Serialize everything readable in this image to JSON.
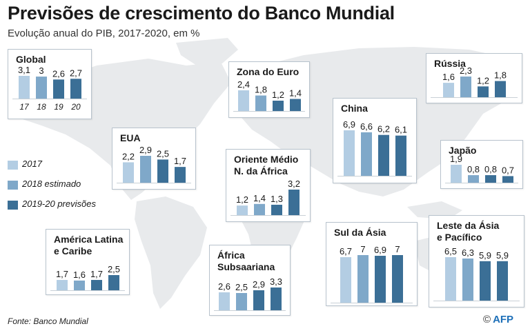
{
  "header": {
    "title": "Previsões de crescimento do Banco Mundial",
    "subtitle": "Evolução anual do PIB, 2017-2020, em %"
  },
  "colors": {
    "c2017": "#b3cde3",
    "c2018": "#7fa8c9",
    "c2019_20": "#3b6f96",
    "map": "#e8eaec",
    "text": "#1a1a1a"
  },
  "legend": [
    {
      "label": "2017",
      "color": "#b3cde3"
    },
    {
      "label": "2018 estimado",
      "color": "#7fa8c9"
    },
    {
      "label": "2019-20 previsões",
      "color": "#3b6f96"
    }
  ],
  "chart_data": [
    {
      "type": "bar",
      "title": "Global",
      "categories": [
        "17",
        "18",
        "19",
        "20"
      ],
      "values": [
        3.1,
        3.0,
        2.6,
        2.7
      ],
      "labels": [
        "3,1",
        "3",
        "2,6",
        "2,7"
      ]
    },
    {
      "type": "bar",
      "title": "Zona do Euro",
      "categories": [
        "17",
        "18",
        "19",
        "20"
      ],
      "values": [
        2.4,
        1.8,
        1.2,
        1.4
      ],
      "labels": [
        "2,4",
        "1,8",
        "1,2",
        "1,4"
      ]
    },
    {
      "type": "bar",
      "title": "Rússia",
      "categories": [
        "17",
        "18",
        "19",
        "20"
      ],
      "values": [
        1.6,
        2.3,
        1.2,
        1.8
      ],
      "labels": [
        "1,6",
        "2,3",
        "1,2",
        "1,8"
      ]
    },
    {
      "type": "bar",
      "title": "China",
      "categories": [
        "17",
        "18",
        "19",
        "20"
      ],
      "values": [
        6.9,
        6.6,
        6.2,
        6.1
      ],
      "labels": [
        "6,9",
        "6,6",
        "6,2",
        "6,1"
      ]
    },
    {
      "type": "bar",
      "title": "EUA",
      "categories": [
        "17",
        "18",
        "19",
        "20"
      ],
      "values": [
        2.2,
        2.9,
        2.5,
        1.7
      ],
      "labels": [
        "2,2",
        "2,9",
        "2,5",
        "1,7"
      ]
    },
    {
      "type": "bar",
      "title": "Oriente Médio\nN. da África",
      "categories": [
        "17",
        "18",
        "19",
        "20"
      ],
      "values": [
        1.2,
        1.4,
        1.3,
        3.2
      ],
      "labels": [
        "1,2",
        "1,4",
        "1,3",
        "3,2"
      ]
    },
    {
      "type": "bar",
      "title": "Japão",
      "categories": [
        "17",
        "18",
        "19",
        "20"
      ],
      "values": [
        1.9,
        0.8,
        0.8,
        0.7
      ],
      "labels": [
        "1,9",
        "0,8",
        "0,8",
        "0,7"
      ]
    },
    {
      "type": "bar",
      "title": "América Latina\ne Caribe",
      "categories": [
        "17",
        "18",
        "19",
        "20"
      ],
      "values": [
        1.7,
        1.6,
        1.7,
        2.5
      ],
      "labels": [
        "1,7",
        "1,6",
        "1,7",
        "2,5"
      ]
    },
    {
      "type": "bar",
      "title": "África\nSubsaariana",
      "categories": [
        "17",
        "18",
        "19",
        "20"
      ],
      "values": [
        2.6,
        2.5,
        2.9,
        3.3
      ],
      "labels": [
        "2,6",
        "2,5",
        "2,9",
        "3,3"
      ]
    },
    {
      "type": "bar",
      "title": "Sul da Ásia",
      "categories": [
        "17",
        "18",
        "19",
        "20"
      ],
      "values": [
        6.7,
        7.0,
        6.9,
        7.0
      ],
      "labels": [
        "6,7",
        "7",
        "6,9",
        "7"
      ]
    },
    {
      "type": "bar",
      "title": "Leste da Ásia\ne Pacífico",
      "categories": [
        "17",
        "18",
        "19",
        "20"
      ],
      "values": [
        6.5,
        6.3,
        5.9,
        5.9
      ],
      "labels": [
        "6,5",
        "6,3",
        "5,9",
        "5,9"
      ]
    }
  ],
  "footer": {
    "source": "Fonte: Banco Mundial",
    "logo_symbol": "©",
    "logo_text": "AFP"
  }
}
